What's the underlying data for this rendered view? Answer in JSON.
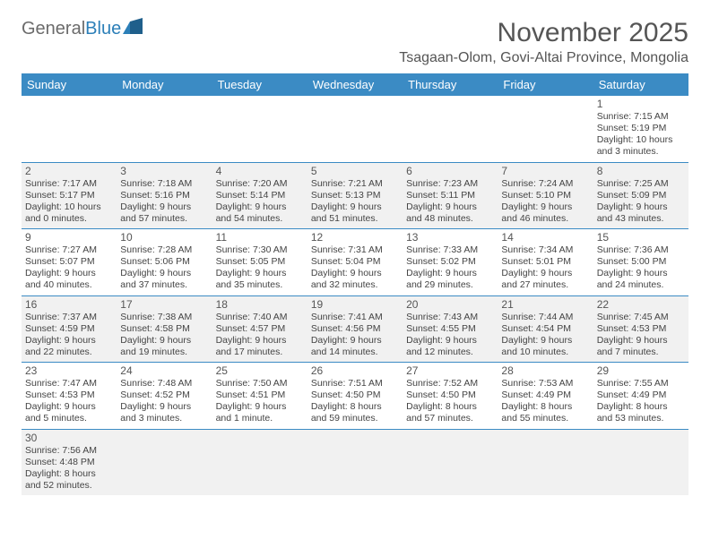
{
  "logo": {
    "part1": "General",
    "part2": "Blue"
  },
  "title": "November 2025",
  "location": "Tsagaan-Olom, Govi-Altai Province, Mongolia",
  "colors": {
    "header_bg": "#3b8bc4",
    "header_text": "#ffffff",
    "row_alt_bg": "#f1f1f1",
    "border": "#3b8bc4",
    "text": "#444444",
    "title_text": "#555555"
  },
  "day_headers": [
    "Sunday",
    "Monday",
    "Tuesday",
    "Wednesday",
    "Thursday",
    "Friday",
    "Saturday"
  ],
  "first_weekday": 6,
  "days": [
    {
      "n": 1,
      "sunrise": "7:15 AM",
      "sunset": "5:19 PM",
      "daylight": "10 hours and 3 minutes."
    },
    {
      "n": 2,
      "sunrise": "7:17 AM",
      "sunset": "5:17 PM",
      "daylight": "10 hours and 0 minutes."
    },
    {
      "n": 3,
      "sunrise": "7:18 AM",
      "sunset": "5:16 PM",
      "daylight": "9 hours and 57 minutes."
    },
    {
      "n": 4,
      "sunrise": "7:20 AM",
      "sunset": "5:14 PM",
      "daylight": "9 hours and 54 minutes."
    },
    {
      "n": 5,
      "sunrise": "7:21 AM",
      "sunset": "5:13 PM",
      "daylight": "9 hours and 51 minutes."
    },
    {
      "n": 6,
      "sunrise": "7:23 AM",
      "sunset": "5:11 PM",
      "daylight": "9 hours and 48 minutes."
    },
    {
      "n": 7,
      "sunrise": "7:24 AM",
      "sunset": "5:10 PM",
      "daylight": "9 hours and 46 minutes."
    },
    {
      "n": 8,
      "sunrise": "7:25 AM",
      "sunset": "5:09 PM",
      "daylight": "9 hours and 43 minutes."
    },
    {
      "n": 9,
      "sunrise": "7:27 AM",
      "sunset": "5:07 PM",
      "daylight": "9 hours and 40 minutes."
    },
    {
      "n": 10,
      "sunrise": "7:28 AM",
      "sunset": "5:06 PM",
      "daylight": "9 hours and 37 minutes."
    },
    {
      "n": 11,
      "sunrise": "7:30 AM",
      "sunset": "5:05 PM",
      "daylight": "9 hours and 35 minutes."
    },
    {
      "n": 12,
      "sunrise": "7:31 AM",
      "sunset": "5:04 PM",
      "daylight": "9 hours and 32 minutes."
    },
    {
      "n": 13,
      "sunrise": "7:33 AM",
      "sunset": "5:02 PM",
      "daylight": "9 hours and 29 minutes."
    },
    {
      "n": 14,
      "sunrise": "7:34 AM",
      "sunset": "5:01 PM",
      "daylight": "9 hours and 27 minutes."
    },
    {
      "n": 15,
      "sunrise": "7:36 AM",
      "sunset": "5:00 PM",
      "daylight": "9 hours and 24 minutes."
    },
    {
      "n": 16,
      "sunrise": "7:37 AM",
      "sunset": "4:59 PM",
      "daylight": "9 hours and 22 minutes."
    },
    {
      "n": 17,
      "sunrise": "7:38 AM",
      "sunset": "4:58 PM",
      "daylight": "9 hours and 19 minutes."
    },
    {
      "n": 18,
      "sunrise": "7:40 AM",
      "sunset": "4:57 PM",
      "daylight": "9 hours and 17 minutes."
    },
    {
      "n": 19,
      "sunrise": "7:41 AM",
      "sunset": "4:56 PM",
      "daylight": "9 hours and 14 minutes."
    },
    {
      "n": 20,
      "sunrise": "7:43 AM",
      "sunset": "4:55 PM",
      "daylight": "9 hours and 12 minutes."
    },
    {
      "n": 21,
      "sunrise": "7:44 AM",
      "sunset": "4:54 PM",
      "daylight": "9 hours and 10 minutes."
    },
    {
      "n": 22,
      "sunrise": "7:45 AM",
      "sunset": "4:53 PM",
      "daylight": "9 hours and 7 minutes."
    },
    {
      "n": 23,
      "sunrise": "7:47 AM",
      "sunset": "4:53 PM",
      "daylight": "9 hours and 5 minutes."
    },
    {
      "n": 24,
      "sunrise": "7:48 AM",
      "sunset": "4:52 PM",
      "daylight": "9 hours and 3 minutes."
    },
    {
      "n": 25,
      "sunrise": "7:50 AM",
      "sunset": "4:51 PM",
      "daylight": "9 hours and 1 minute."
    },
    {
      "n": 26,
      "sunrise": "7:51 AM",
      "sunset": "4:50 PM",
      "daylight": "8 hours and 59 minutes."
    },
    {
      "n": 27,
      "sunrise": "7:52 AM",
      "sunset": "4:50 PM",
      "daylight": "8 hours and 57 minutes."
    },
    {
      "n": 28,
      "sunrise": "7:53 AM",
      "sunset": "4:49 PM",
      "daylight": "8 hours and 55 minutes."
    },
    {
      "n": 29,
      "sunrise": "7:55 AM",
      "sunset": "4:49 PM",
      "daylight": "8 hours and 53 minutes."
    },
    {
      "n": 30,
      "sunrise": "7:56 AM",
      "sunset": "4:48 PM",
      "daylight": "8 hours and 52 minutes."
    }
  ],
  "labels": {
    "sunrise": "Sunrise:",
    "sunset": "Sunset:",
    "daylight": "Daylight:"
  }
}
